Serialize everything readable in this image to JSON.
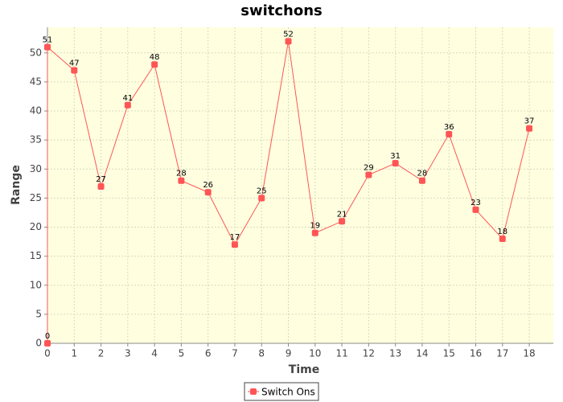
{
  "chart_data": {
    "type": "line",
    "title": "switchons",
    "x_label": "Time",
    "y_label": "Range",
    "x": [
      0,
      0,
      1,
      2,
      3,
      4,
      5,
      6,
      7,
      8,
      9,
      10,
      11,
      12,
      13,
      14,
      15,
      16,
      17,
      18
    ],
    "series": [
      {
        "name": "Switch Ons",
        "color": "#ff5555",
        "values": [
          0,
          51,
          47,
          27,
          41,
          48,
          28,
          26,
          17,
          25,
          52,
          19,
          21,
          29,
          31,
          28,
          36,
          23,
          18,
          37
        ]
      }
    ],
    "xlim": [
      0,
      18.9
    ],
    "xticks": [
      0,
      1,
      2,
      3,
      4,
      5,
      6,
      7,
      8,
      9,
      10,
      11,
      12,
      13,
      14,
      15,
      16,
      17,
      18
    ],
    "ylim": [
      0,
      54.4
    ],
    "yticks": [
      0,
      5,
      10,
      15,
      20,
      25,
      30,
      35,
      40,
      45,
      50
    ],
    "grid": true,
    "legend": "bottom",
    "background": "#ffffe0"
  }
}
